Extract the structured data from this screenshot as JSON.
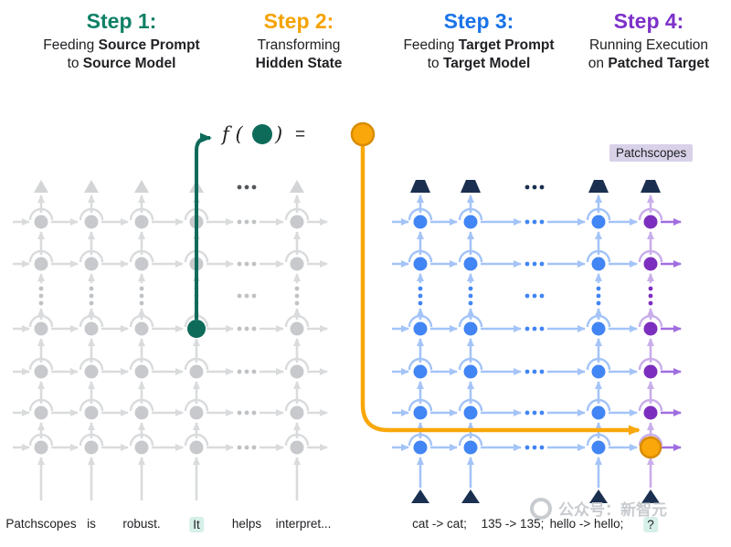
{
  "steps": [
    {
      "title": "Step 1:",
      "color": "#0e8066",
      "lines": [
        [
          {
            "t": "Feeding ",
            "b": false
          },
          {
            "t": "Source Prompt",
            "b": true
          }
        ],
        [
          {
            "t": "to ",
            "b": false
          },
          {
            "t": "Source Model",
            "b": true
          }
        ]
      ]
    },
    {
      "title": "Step 2:",
      "color": "#f5a200",
      "lines": [
        [
          {
            "t": "Transforming",
            "b": false
          }
        ],
        [
          {
            "t": "Hidden State",
            "b": true
          }
        ]
      ]
    },
    {
      "title": "Step 3:",
      "color": "#1a73e8",
      "lines": [
        [
          {
            "t": "Feeding ",
            "b": false
          },
          {
            "t": "Target Prompt",
            "b": true
          }
        ],
        [
          {
            "t": "to ",
            "b": false
          },
          {
            "t": "Target Model",
            "b": true
          }
        ]
      ]
    },
    {
      "title": "Step 4:",
      "color": "#7c30c9",
      "lines": [
        [
          {
            "t": "Running Execution",
            "b": false
          }
        ],
        [
          {
            "t": "on ",
            "b": false
          },
          {
            "t": "Patched Target",
            "b": true
          }
        ]
      ]
    }
  ],
  "formula": {
    "f": "f (",
    "close": ")",
    "equals": "="
  },
  "patchscopes_tag": "Patchscopes",
  "source_prompt": {
    "tokens": [
      "Patchscopes",
      "is",
      "robust.",
      "It",
      "helps",
      "interpret..."
    ],
    "highlight_index": 3
  },
  "target_prompt": {
    "tokens": [
      "cat -> cat;",
      "135 -> 135;",
      "hello -> hello;",
      "?"
    ],
    "highlight_index": 3
  },
  "watermark": {
    "text": "公众号：新智元"
  },
  "colors": {
    "teal_node": "#0e6b59",
    "orange": "#f9a70a",
    "orange_dark": "#d98b00",
    "gray_arrow": "#d9dbdd",
    "gray_node": "#c7c9cc",
    "gray_top": "#d2d4d6",
    "gray_dots": "#bfc2c5",
    "gray_top_dots": "#55585c",
    "blue_node": "#4285f4",
    "blue_arrow": "#a4c4f8",
    "purple_node": "#7c2fbe",
    "purple_arrow": "#a06ee0",
    "purple_light": "#c9aeea",
    "navy": "#1b3050",
    "highlight_bg": "#d6efe9",
    "patchscopes_bg": "#d8d1e8",
    "text_dark": "#202124",
    "watermark_gray": "#c6c9cd"
  },
  "diagram": {
    "left_grid": {
      "columns": 6,
      "ellipsis_column": 4,
      "node_rows": 6,
      "ellipsis_row_after": 2,
      "source_node": {
        "column": 3,
        "row": 2
      }
    },
    "right_grid": {
      "columns": 5,
      "ellipsis_column": 2,
      "node_rows": 6,
      "ellipsis_row_after": 2,
      "patched_node": {
        "column": 4,
        "row": 5
      }
    }
  }
}
